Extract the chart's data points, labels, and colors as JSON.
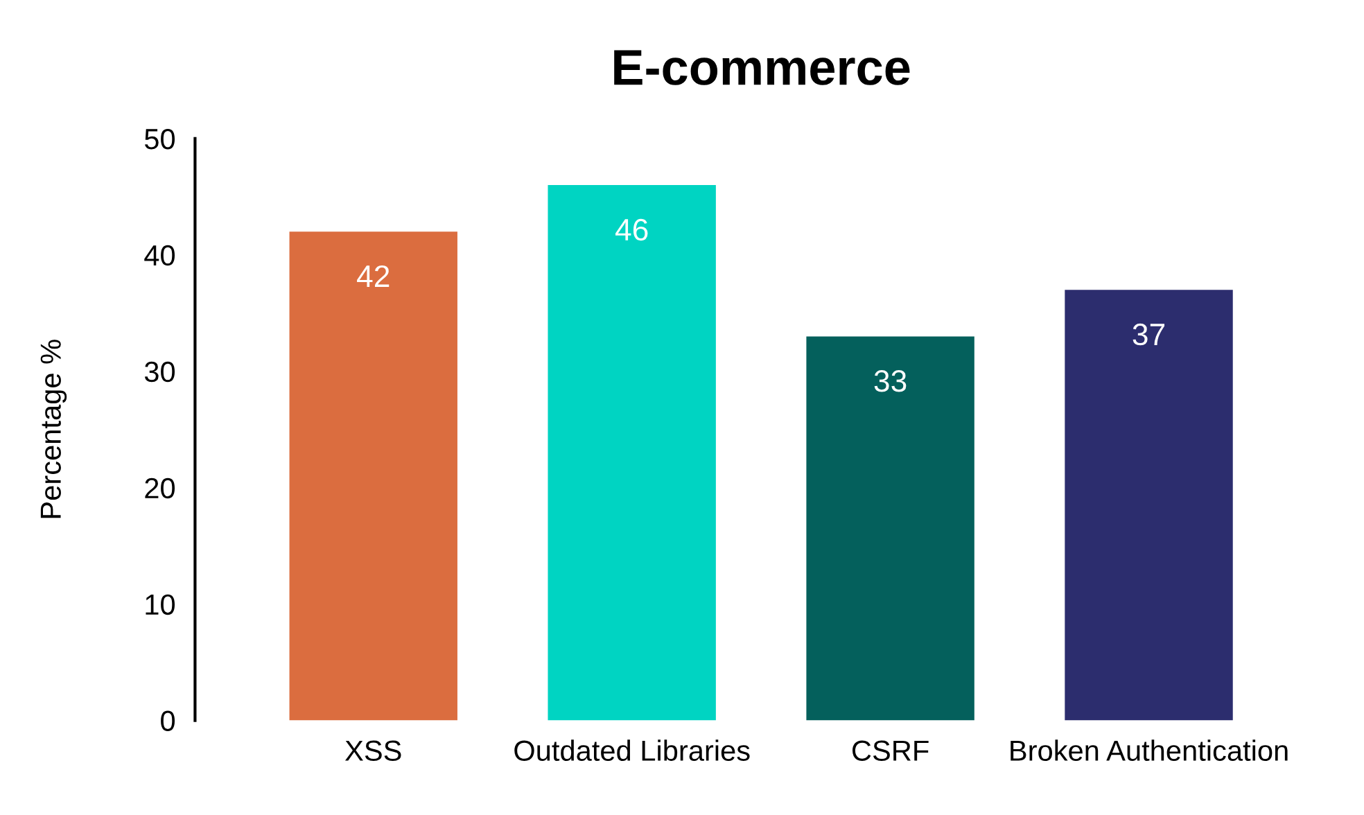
{
  "chart_data": {
    "type": "bar",
    "title": "E-commerce",
    "ylabel": "Percentage %",
    "categories": [
      "XSS",
      "Outdated Libraries",
      "CSRF",
      "Broken Authentication"
    ],
    "values": [
      42,
      46,
      33,
      37
    ],
    "colors": [
      "#db6d3f",
      "#00d4c2",
      "#04605c",
      "#2c2d6e"
    ],
    "ylim": [
      0,
      50
    ],
    "yticks": [
      0,
      10,
      20,
      30,
      40,
      50
    ],
    "grid": false,
    "data_labels": true
  }
}
